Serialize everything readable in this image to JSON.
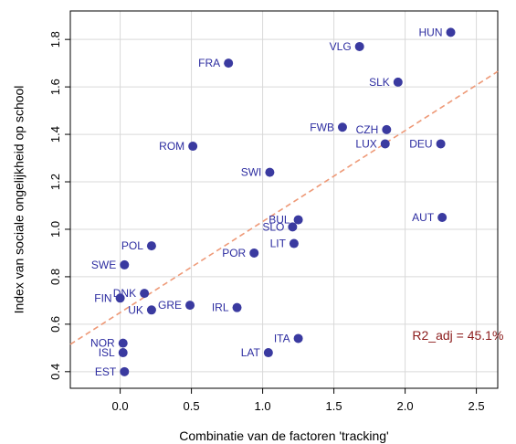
{
  "chart_data": {
    "type": "scatter",
    "title": "",
    "xlabel": "Combinatie van de factoren 'tracking'",
    "ylabel": "Index van sociale ongelijkheid op school",
    "xlim": [
      -0.35,
      2.65
    ],
    "ylim": [
      0.33,
      1.92
    ],
    "xticks": [
      0.0,
      0.5,
      1.0,
      1.5,
      2.0,
      2.5
    ],
    "xtick_labels": [
      "0.0",
      "0.5",
      "1.0",
      "1.5",
      "2.0",
      "2.5"
    ],
    "yticks": [
      0.4,
      0.6,
      0.8,
      1.0,
      1.2,
      1.4,
      1.6,
      1.8
    ],
    "ytick_labels": [
      "0.4",
      "0.6",
      "0.8",
      "1.0",
      "1.2",
      "1.4",
      "1.6",
      "1.8"
    ],
    "grid": true,
    "point_color": "#3a3aa0",
    "label_color": "#2c2ca0",
    "points": [
      {
        "label": "HUN",
        "x": 2.32,
        "y": 1.83,
        "side": "left"
      },
      {
        "label": "VLG",
        "x": 1.68,
        "y": 1.77,
        "side": "left"
      },
      {
        "label": "FRA",
        "x": 0.76,
        "y": 1.7,
        "side": "left"
      },
      {
        "label": "SLK",
        "x": 1.95,
        "y": 1.62,
        "side": "left"
      },
      {
        "label": "FWB",
        "x": 1.56,
        "y": 1.43,
        "side": "left"
      },
      {
        "label": "CZH",
        "x": 1.87,
        "y": 1.42,
        "side": "left"
      },
      {
        "label": "LUX",
        "x": 1.86,
        "y": 1.36,
        "side": "left"
      },
      {
        "label": "DEU",
        "x": 2.25,
        "y": 1.36,
        "side": "left"
      },
      {
        "label": "ROM",
        "x": 0.51,
        "y": 1.35,
        "side": "left"
      },
      {
        "label": "SWI",
        "x": 1.05,
        "y": 1.24,
        "side": "left"
      },
      {
        "label": "AUT",
        "x": 2.26,
        "y": 1.05,
        "side": "left"
      },
      {
        "label": "BUL",
        "x": 1.25,
        "y": 1.04,
        "side": "left"
      },
      {
        "label": "SLO",
        "x": 1.21,
        "y": 1.01,
        "side": "left"
      },
      {
        "label": "LIT",
        "x": 1.22,
        "y": 0.94,
        "side": "left"
      },
      {
        "label": "POL",
        "x": 0.22,
        "y": 0.93,
        "side": "left"
      },
      {
        "label": "POR",
        "x": 0.94,
        "y": 0.9,
        "side": "left"
      },
      {
        "label": "SWE",
        "x": 0.03,
        "y": 0.85,
        "side": "left"
      },
      {
        "label": "DNK",
        "x": 0.17,
        "y": 0.73,
        "side": "left"
      },
      {
        "label": "FIN",
        "x": 0.0,
        "y": 0.71,
        "side": "left"
      },
      {
        "label": "GRE",
        "x": 0.49,
        "y": 0.68,
        "side": "left"
      },
      {
        "label": "UK",
        "x": 0.22,
        "y": 0.66,
        "side": "left"
      },
      {
        "label": "IRL",
        "x": 0.82,
        "y": 0.67,
        "side": "left"
      },
      {
        "label": "ITA",
        "x": 1.25,
        "y": 0.54,
        "side": "left"
      },
      {
        "label": "NOR",
        "x": 0.02,
        "y": 0.52,
        "side": "left"
      },
      {
        "label": "ISL",
        "x": 0.02,
        "y": 0.48,
        "side": "left"
      },
      {
        "label": "LAT",
        "x": 1.04,
        "y": 0.48,
        "side": "left"
      },
      {
        "label": "EST",
        "x": 0.03,
        "y": 0.4,
        "side": "left"
      }
    ],
    "trend_line": {
      "color": "#ee9977",
      "style": "dashed",
      "x": [
        -0.35,
        2.65
      ],
      "y": [
        0.515,
        1.665
      ]
    },
    "annotation": {
      "text": "R2_adj = 45.1%",
      "color": "#8b1a1a",
      "x": 2.05,
      "y": 0.535
    }
  }
}
